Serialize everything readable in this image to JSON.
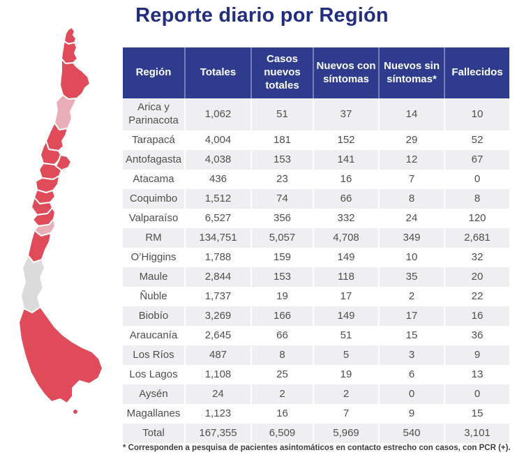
{
  "title": "Reporte diario por Región",
  "colors": {
    "title_text": "#232D7D",
    "header_bg": "#2F3B8C",
    "header_text": "#FFFFFF",
    "row_alt_bg": "#EFEFF1",
    "body_text": "#4E4E4E",
    "map_high": "#E04B5A",
    "map_medium": "#EAAEB8",
    "map_low": "#DBDBDB"
  },
  "chart_data": {
    "type": "table",
    "title": "Reporte diario por Región",
    "columns": [
      "Región",
      "Totales",
      "Casos nuevos totales",
      "Nuevos con síntomas",
      "Nuevos sin síntomas*",
      "Fallecidos"
    ],
    "rows": [
      [
        "Arica y Parinacota",
        "1,062",
        "51",
        "37",
        "14",
        "10"
      ],
      [
        "Tarapacá",
        "4,004",
        "181",
        "152",
        "29",
        "52"
      ],
      [
        "Antofagasta",
        "4,038",
        "153",
        "141",
        "12",
        "67"
      ],
      [
        "Atacama",
        "436",
        "23",
        "16",
        "7",
        "0"
      ],
      [
        "Coquimbo",
        "1,512",
        "74",
        "66",
        "8",
        "8"
      ],
      [
        "Valparaíso",
        "6,527",
        "356",
        "332",
        "24",
        "120"
      ],
      [
        "RM",
        "134,751",
        "5,057",
        "4,708",
        "349",
        "2,681"
      ],
      [
        "O’Higgins",
        "1,788",
        "159",
        "149",
        "10",
        "32"
      ],
      [
        "Maule",
        "2,844",
        "153",
        "118",
        "35",
        "20"
      ],
      [
        "Ñuble",
        "1,737",
        "19",
        "17",
        "2",
        "22"
      ],
      [
        "Biobío",
        "3,269",
        "166",
        "149",
        "17",
        "16"
      ],
      [
        "Araucanía",
        "2,645",
        "66",
        "51",
        "15",
        "36"
      ],
      [
        "Los Ríos",
        "487",
        "8",
        "5",
        "3",
        "9"
      ],
      [
        "Los Lagos",
        "1,108",
        "25",
        "19",
        "6",
        "13"
      ],
      [
        "Aysén",
        "24",
        "2",
        "2",
        "0",
        "0"
      ],
      [
        "Magallanes",
        "1,123",
        "16",
        "7",
        "9",
        "15"
      ],
      [
        "Total",
        "167,355",
        "6,509",
        "5,969",
        "540",
        "3,101"
      ]
    ],
    "footnote": "* Corresponden a pesquisa de pacientes asintomáticos en contacto estrecho con casos, con PCR (+)."
  },
  "map": {
    "regions": [
      {
        "id": "arica_y_parinacota",
        "name": "Arica y Parinacota",
        "level": "high"
      },
      {
        "id": "tarapaca",
        "name": "Tarapacá",
        "level": "high"
      },
      {
        "id": "antofagasta",
        "name": "Antofagasta",
        "level": "high"
      },
      {
        "id": "atacama",
        "name": "Atacama",
        "level": "medium"
      },
      {
        "id": "coquimbo",
        "name": "Coquimbo",
        "level": "high"
      },
      {
        "id": "valparaiso",
        "name": "Valparaíso",
        "level": "high"
      },
      {
        "id": "rm",
        "name": "RM",
        "level": "high"
      },
      {
        "id": "ohiggins",
        "name": "O’Higgins",
        "level": "high"
      },
      {
        "id": "maule",
        "name": "Maule",
        "level": "high"
      },
      {
        "id": "nuble",
        "name": "Ñuble",
        "level": "high"
      },
      {
        "id": "biobio",
        "name": "Biobío",
        "level": "high"
      },
      {
        "id": "araucania",
        "name": "Araucanía",
        "level": "high"
      },
      {
        "id": "los_rios",
        "name": "Los Ríos",
        "level": "medium"
      },
      {
        "id": "los_lagos",
        "name": "Los Lagos",
        "level": "high"
      },
      {
        "id": "aysen",
        "name": "Aysén",
        "level": "low"
      },
      {
        "id": "magallanes",
        "name": "Magallanes",
        "level": "high"
      },
      {
        "id": "magallanes_island",
        "name": "Magallanes (isla)",
        "level": "high"
      }
    ]
  }
}
